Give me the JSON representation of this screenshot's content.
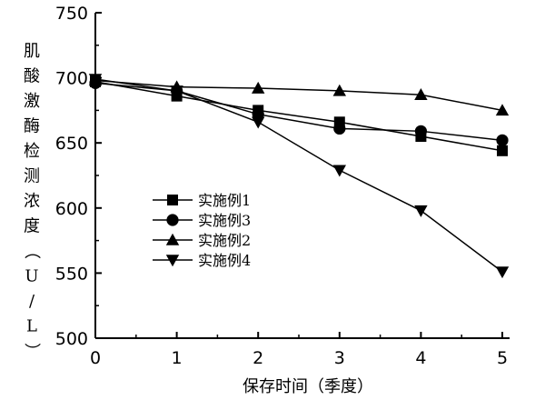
{
  "chart_data": {
    "type": "line",
    "xlabel": "保存时间（季度）",
    "ylabel": "肌酸激酶检测浓度（U/L）",
    "x": [
      0,
      1,
      2,
      3,
      4,
      5
    ],
    "xlim": [
      0,
      5
    ],
    "ylim": [
      500,
      750
    ],
    "yticks": [
      500,
      550,
      600,
      650,
      700,
      750
    ],
    "xticks": [
      0,
      1,
      2,
      3,
      4,
      5
    ],
    "grid": false,
    "legend_position": "center-left",
    "series": [
      {
        "name": "实施例1",
        "marker": "square",
        "values": [
          697,
          686,
          675,
          666,
          655,
          644
        ]
      },
      {
        "name": "实施例3",
        "marker": "circle",
        "values": [
          696,
          690,
          672,
          661,
          659,
          652
        ]
      },
      {
        "name": "实施例2",
        "marker": "triangle-up",
        "values": [
          698,
          693,
          692,
          690,
          687,
          675
        ]
      },
      {
        "name": "实施例4",
        "marker": "triangle-down",
        "values": [
          699,
          690,
          666,
          629,
          598,
          551
        ]
      }
    ]
  }
}
